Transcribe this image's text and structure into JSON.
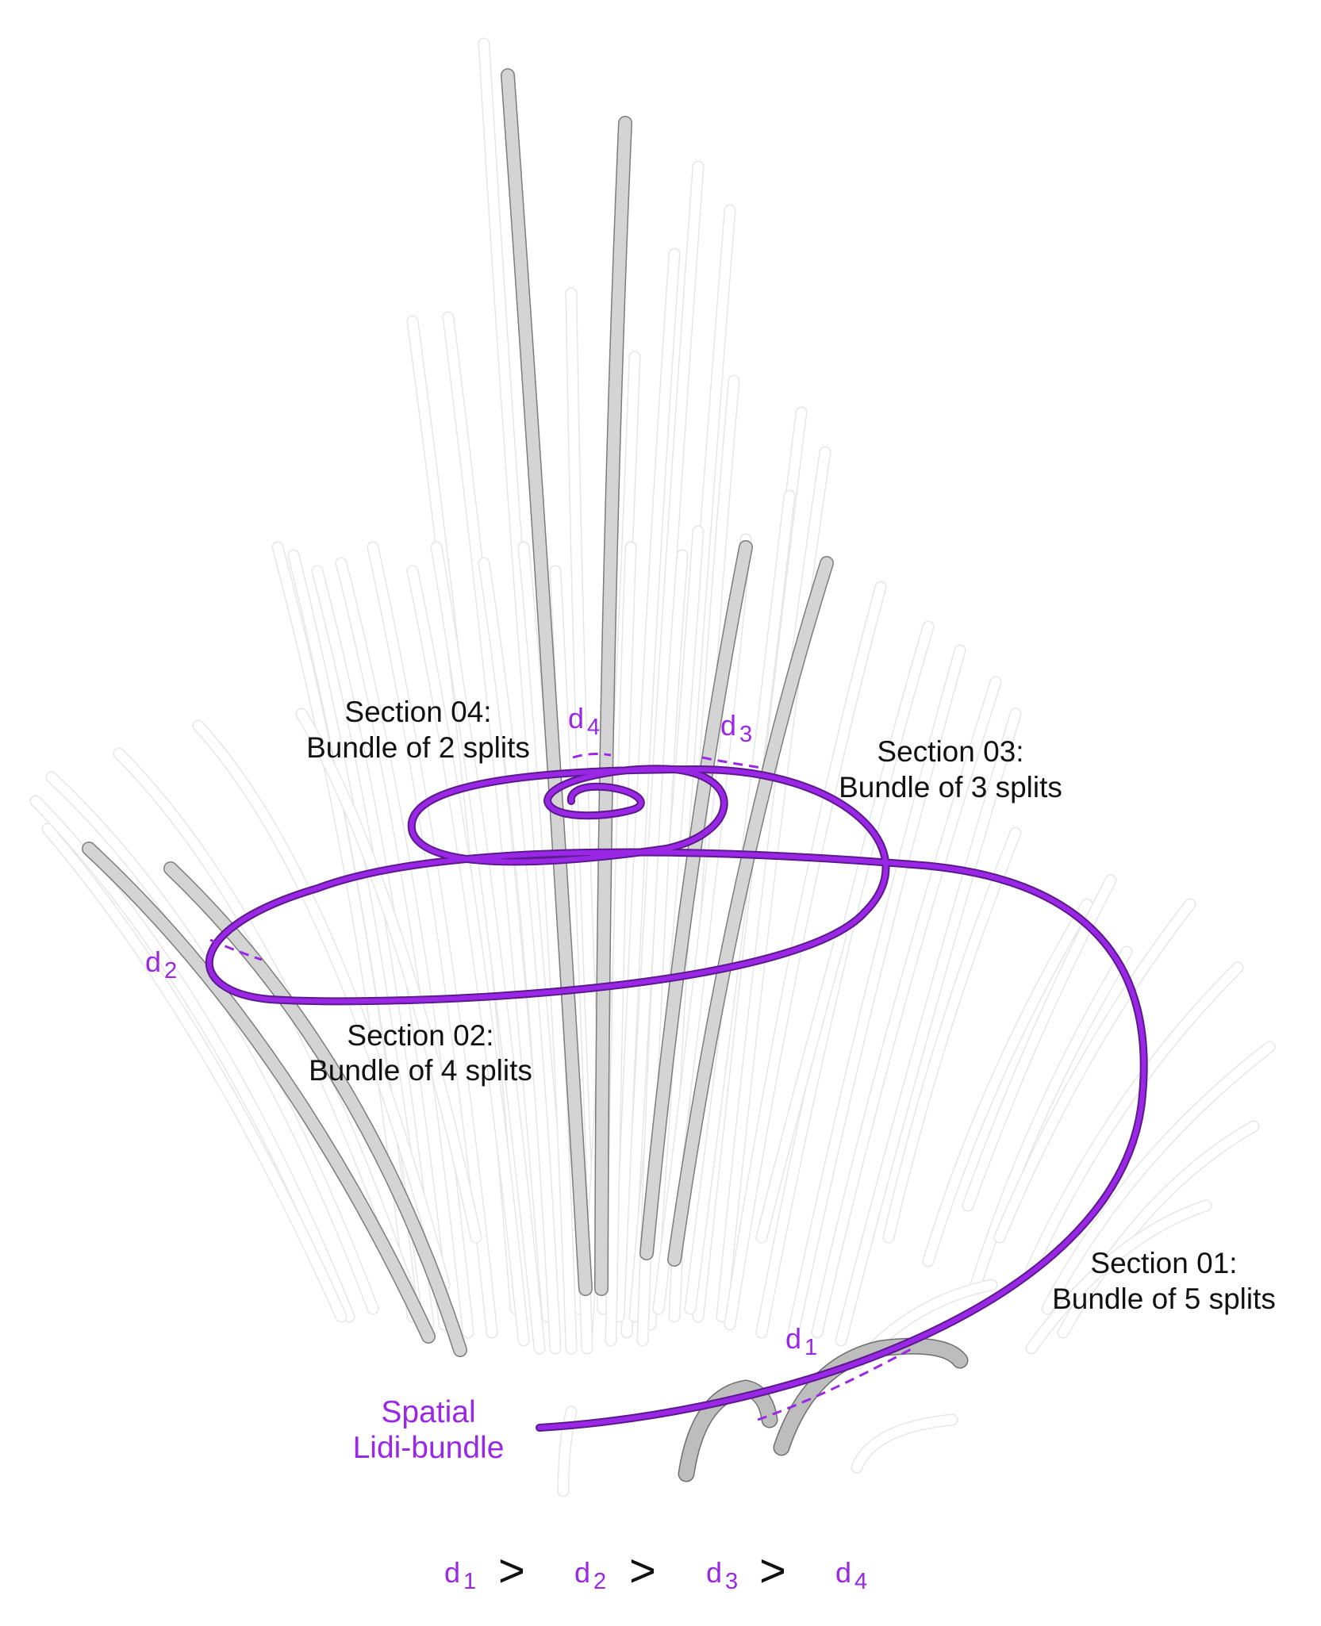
{
  "sections": [
    {
      "id": "s01",
      "title": "Section 01:",
      "subtitle": "Bundle of 5 splits"
    },
    {
      "id": "s02",
      "title": "Section 02:",
      "subtitle": "Bundle of 4 splits"
    },
    {
      "id": "s03",
      "title": "Section 03:",
      "subtitle": "Bundle of 3 splits"
    },
    {
      "id": "s04",
      "title": "Section 04:",
      "subtitle": "Bundle of 2 splits"
    }
  ],
  "spiral_label": {
    "line1": "Spatial",
    "line2": "Lidi-bundle"
  },
  "distance_labels": [
    {
      "base": "d",
      "sub": "1"
    },
    {
      "base": "d",
      "sub": "2"
    },
    {
      "base": "d",
      "sub": "3"
    },
    {
      "base": "d",
      "sub": "4"
    }
  ],
  "inequality": {
    "symbol": ">"
  },
  "colors": {
    "accent": "#9b27e6",
    "rod_fill": "#c7c7c7",
    "rod_ghost": "#ededed",
    "text": "#111111"
  }
}
